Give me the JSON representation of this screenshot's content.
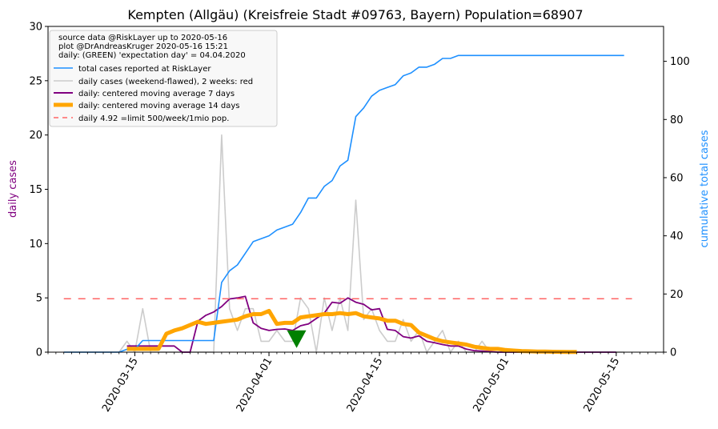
{
  "chart_data": {
    "type": "line",
    "title": "Kempten (Allgäu) (Kreisfreie Stadt #09763, Bayern) Population=68907",
    "ylabel_left": "daily cases",
    "ylabel_right": "cumulative total cases",
    "colors": {
      "ylabel_left": "#800080",
      "ylabel_right": "#1e90ff",
      "total": "#1e90ff",
      "daily": "#cccccc",
      "ma7": "#800080",
      "ma14": "#ffa500",
      "limit": "#ff6666",
      "marker": "#008000",
      "legend_bg": "#f7f7f7",
      "legend_border": "#cccccc"
    },
    "x_start_date": "2020-03-06",
    "xlim_day": [
      -2,
      76
    ],
    "ylim_left": [
      0,
      30
    ],
    "ylim_right": [
      0,
      112
    ],
    "yticks_left": [
      "0",
      "5",
      "10",
      "15",
      "20",
      "25",
      "30"
    ],
    "yticks_right": [
      "0",
      "20",
      "40",
      "60",
      "80",
      "100"
    ],
    "xticks": [
      {
        "day": 9,
        "label": "2020-03-15"
      },
      {
        "day": 26,
        "label": "2020-04-01"
      },
      {
        "day": 40,
        "label": "2020-04-15"
      },
      {
        "day": 56,
        "label": "2020-05-01"
      },
      {
        "day": 70,
        "label": "2020-05-15"
      }
    ],
    "legend": {
      "header": [
        "source data @RiskLayer up to 2020-05-16",
        "plot @DrAndreasKruger 2020-05-16 15:21",
        "daily: (GREEN) 'expectation day' = 04.04.2020"
      ],
      "entries": [
        {
          "key": "total",
          "label": "total cases reported at RiskLayer"
        },
        {
          "key": "daily",
          "label": "daily cases (weekend-flawed), 2 weeks: red"
        },
        {
          "key": "ma7",
          "label": "daily: centered moving average 7 days"
        },
        {
          "key": "ma14",
          "label": "daily: centered moving average 14 days"
        },
        {
          "key": "limit",
          "label": "daily 4.92 =limit 500/week/1mio pop."
        }
      ]
    },
    "limit_value": 4.92,
    "limit_range_day": [
      0,
      72
    ],
    "marker_day": 29.5,
    "marker_value": 1.2,
    "series": [
      {
        "name": "total cases reported at RiskLayer",
        "axis": "right",
        "x": [
          0,
          1,
          2,
          3,
          4,
          5,
          6,
          7,
          8,
          9,
          10,
          11,
          12,
          13,
          14,
          15,
          16,
          17,
          18,
          19,
          20,
          21,
          22,
          23,
          24,
          25,
          26,
          27,
          28,
          29,
          30,
          31,
          32,
          33,
          34,
          35,
          36,
          37,
          38,
          39,
          40,
          41,
          42,
          43,
          44,
          45,
          46,
          47,
          48,
          49,
          50,
          51,
          52,
          53,
          54,
          55,
          56,
          57,
          58,
          59,
          60,
          61,
          62,
          63,
          64,
          65,
          66,
          67,
          68,
          69,
          70,
          71
        ],
        "y": [
          0,
          0,
          0,
          0,
          0,
          0,
          0,
          0,
          1,
          1,
          4,
          4,
          4,
          4,
          4,
          4,
          4,
          4,
          4,
          4,
          24,
          28,
          30,
          34,
          38,
          39,
          40,
          42,
          43,
          44,
          48,
          53,
          53,
          57,
          59,
          64,
          66,
          81,
          84,
          88,
          90,
          91,
          92,
          95,
          96,
          98,
          98,
          99,
          101,
          101,
          102,
          102,
          102,
          102,
          102,
          102,
          102,
          102,
          102,
          102,
          102,
          102,
          102,
          102,
          102,
          102,
          102,
          102,
          102,
          102,
          102,
          102
        ]
      },
      {
        "name": "daily cases (weekend-flawed), 2 weeks: red",
        "axis": "left",
        "x": [
          0,
          1,
          2,
          3,
          4,
          5,
          6,
          7,
          8,
          9,
          10,
          11,
          12,
          13,
          14,
          15,
          16,
          17,
          18,
          19,
          20,
          21,
          22,
          23,
          24,
          25,
          26,
          27,
          28,
          29,
          30,
          31,
          32,
          33,
          34,
          35,
          36,
          37,
          38,
          39,
          40,
          41,
          42,
          43,
          44,
          45,
          46,
          47,
          48,
          49,
          50,
          51,
          52,
          53,
          54,
          55,
          56,
          57,
          58,
          59,
          60,
          61,
          62,
          63,
          64,
          65,
          66,
          67,
          68,
          69,
          70,
          71
        ],
        "y": [
          0,
          0,
          0,
          0,
          0,
          0,
          0,
          0,
          1,
          0,
          4,
          0,
          0,
          0,
          0,
          0,
          0,
          0,
          0,
          0,
          20,
          4,
          2,
          4,
          4,
          1,
          1,
          2,
          1,
          1,
          5,
          4,
          0,
          5,
          2,
          5,
          2,
          14,
          3,
          4,
          2,
          1,
          1,
          3,
          1,
          2,
          0,
          1,
          2,
          0,
          1,
          0,
          0,
          1,
          0,
          0,
          0,
          0,
          0,
          0,
          0,
          0,
          0,
          0,
          0,
          0,
          0,
          0,
          0,
          0,
          0,
          0
        ]
      },
      {
        "name": "daily: centered moving average 7 days",
        "axis": "left",
        "x": [
          8,
          9,
          10,
          11,
          12,
          13,
          14,
          15,
          16,
          17,
          18,
          19,
          20,
          21,
          22,
          23,
          24,
          25,
          26,
          27,
          28,
          29,
          30,
          31,
          32,
          33,
          34,
          35,
          36,
          37,
          38,
          39,
          40,
          41,
          42,
          43,
          44,
          45,
          46,
          47,
          48,
          49,
          50,
          51,
          52,
          53,
          54,
          55,
          56,
          57,
          58,
          59,
          60,
          61,
          62,
          63,
          64,
          65,
          66,
          67,
          68,
          69,
          70
        ],
        "y": [
          0.57,
          0.57,
          0.57,
          0.57,
          0.57,
          0.57,
          0.57,
          0,
          0,
          2.86,
          3.4,
          3.7,
          4.2,
          4.9,
          5.0,
          5.14,
          2.7,
          2.2,
          2.0,
          2.1,
          2.14,
          2.0,
          2.43,
          2.6,
          3.1,
          3.6,
          4.6,
          4.5,
          5.0,
          4.6,
          4.4,
          3.9,
          4.0,
          2.1,
          2.0,
          1.43,
          1.3,
          1.5,
          1.0,
          0.86,
          0.7,
          0.57,
          0.57,
          0.29,
          0.14,
          0.1,
          0.05,
          0,
          0,
          0,
          0,
          0,
          0,
          0,
          0,
          0,
          0,
          0,
          0,
          0,
          0,
          0,
          0
        ]
      },
      {
        "name": "daily: centered moving average 14 days",
        "axis": "left",
        "x": [
          8,
          9,
          10,
          11,
          12,
          13,
          14,
          15,
          16,
          17,
          18,
          19,
          20,
          21,
          22,
          23,
          24,
          25,
          26,
          27,
          28,
          29,
          30,
          31,
          32,
          33,
          34,
          35,
          36,
          37,
          38,
          39,
          40,
          41,
          42,
          43,
          44,
          45,
          46,
          47,
          48,
          49,
          50,
          51,
          52,
          53,
          54,
          55,
          56,
          57,
          58,
          59,
          60,
          61,
          62,
          63,
          64,
          65
        ],
        "y": [
          0.3,
          0.3,
          0.3,
          0.3,
          0.3,
          1.7,
          2.0,
          2.2,
          2.5,
          2.8,
          2.6,
          2.7,
          2.8,
          2.9,
          3.0,
          3.3,
          3.5,
          3.5,
          3.8,
          2.6,
          2.7,
          2.7,
          3.2,
          3.3,
          3.4,
          3.5,
          3.5,
          3.6,
          3.5,
          3.6,
          3.3,
          3.2,
          3.1,
          2.9,
          2.9,
          2.6,
          2.5,
          1.8,
          1.5,
          1.2,
          1.0,
          0.9,
          0.8,
          0.7,
          0.5,
          0.4,
          0.3,
          0.3,
          0.2,
          0.15,
          0.1,
          0.08,
          0.06,
          0.05,
          0.04,
          0.03,
          0.02,
          0.02
        ]
      }
    ]
  }
}
